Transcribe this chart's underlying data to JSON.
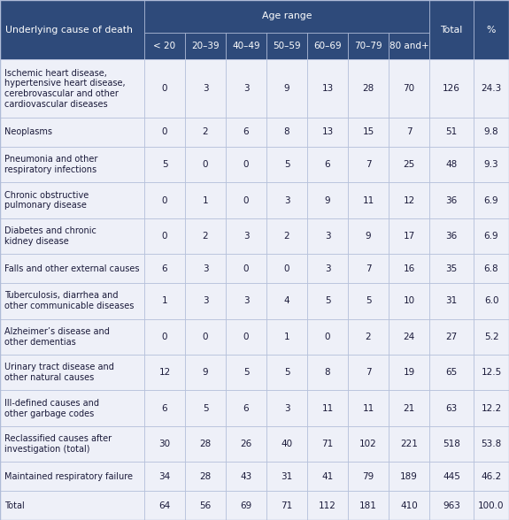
{
  "header_bg": "#2e4a7a",
  "header_text_color": "#ffffff",
  "row_bg": "#eef0f8",
  "border_color": "#b0bcd8",
  "text_color": "#1a1a3a",
  "col_headers_row2": [
    "< 20",
    "20–39",
    "40–49",
    "50–59",
    "60–69",
    "70–79",
    "80 and+"
  ],
  "rows": [
    {
      "cause": "Ischemic heart disease,\nhypertensive heart disease,\ncerebrovascular and other\ncardiovascular diseases",
      "values": [
        "0",
        "3",
        "3",
        "9",
        "13",
        "28",
        "70",
        "126",
        "24.3"
      ],
      "n_lines": 4
    },
    {
      "cause": "Neoplasms",
      "values": [
        "0",
        "2",
        "6",
        "8",
        "13",
        "15",
        "7",
        "51",
        "9.8"
      ],
      "n_lines": 1
    },
    {
      "cause": "Pneumonia and other\nrespiratory infections",
      "values": [
        "5",
        "0",
        "0",
        "5",
        "6",
        "7",
        "25",
        "48",
        "9.3"
      ],
      "n_lines": 2
    },
    {
      "cause": "Chronic obstructive\npulmonary disease",
      "values": [
        "0",
        "1",
        "0",
        "3",
        "9",
        "11",
        "12",
        "36",
        "6.9"
      ],
      "n_lines": 2
    },
    {
      "cause": "Diabetes and chronic\nkidney disease",
      "values": [
        "0",
        "2",
        "3",
        "2",
        "3",
        "9",
        "17",
        "36",
        "6.9"
      ],
      "n_lines": 2
    },
    {
      "cause": "Falls and other external causes",
      "values": [
        "6",
        "3",
        "0",
        "0",
        "3",
        "7",
        "16",
        "35",
        "6.8"
      ],
      "n_lines": 1
    },
    {
      "cause": "Tuberculosis, diarrhea and\nother communicable diseases",
      "values": [
        "1",
        "3",
        "3",
        "4",
        "5",
        "5",
        "10",
        "31",
        "6.0"
      ],
      "n_lines": 2
    },
    {
      "cause": "Alzheimer’s disease and\nother dementias",
      "values": [
        "0",
        "0",
        "0",
        "1",
        "0",
        "2",
        "24",
        "27",
        "5.2"
      ],
      "n_lines": 2
    },
    {
      "cause": "Urinary tract disease and\nother natural causes",
      "values": [
        "12",
        "9",
        "5",
        "5",
        "8",
        "7",
        "19",
        "65",
        "12.5"
      ],
      "n_lines": 2
    },
    {
      "cause": "Ill-defined causes and\nother garbage codes",
      "values": [
        "6",
        "5",
        "6",
        "3",
        "11",
        "11",
        "21",
        "63",
        "12.2"
      ],
      "n_lines": 2
    },
    {
      "cause": "Reclassified causes after\ninvestigation (total)",
      "values": [
        "30",
        "28",
        "26",
        "40",
        "71",
        "102",
        "221",
        "518",
        "53.8"
      ],
      "n_lines": 2
    },
    {
      "cause": "Maintained respiratory failure",
      "values": [
        "34",
        "28",
        "43",
        "31",
        "41",
        "79",
        "189",
        "445",
        "46.2"
      ],
      "n_lines": 1
    },
    {
      "cause": "Total",
      "values": [
        "64",
        "56",
        "69",
        "71",
        "112",
        "181",
        "410",
        "963",
        "100.0"
      ],
      "n_lines": 1
    }
  ]
}
